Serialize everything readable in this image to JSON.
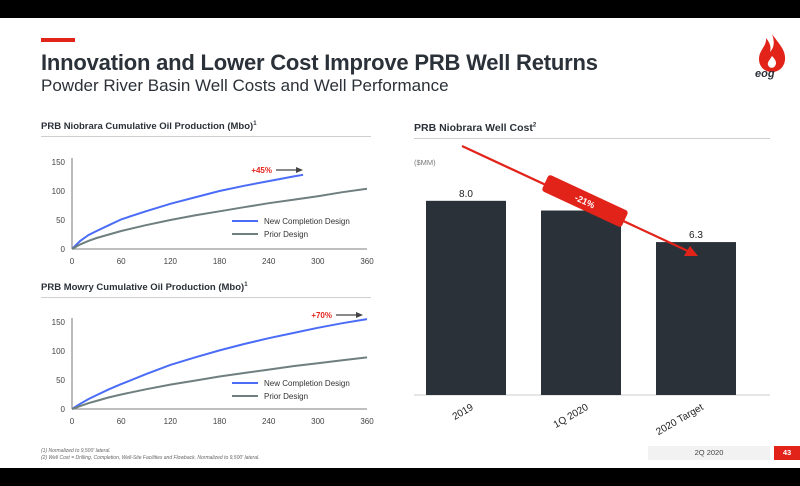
{
  "header": {
    "title": "Innovation and Lower Cost Improve PRB Well Returns",
    "subtitle": "Powder River Basin Well Costs and Well Performance",
    "logo_text": "eog"
  },
  "colors": {
    "accent": "#e2231a",
    "new_design": "#4a6cf7",
    "prior_design": "#6f7f7f",
    "bar": "#2b3138",
    "arrow": "#e2231a"
  },
  "chart_data": [
    {
      "type": "line",
      "title": "PRB Niobrara Cumulative Oil Production (Mbo)",
      "title_sup": "1",
      "xlim": [
        0,
        360
      ],
      "ylim": [
        0,
        150
      ],
      "xticks": [
        "0",
        "60",
        "120",
        "180",
        "240",
        "300",
        "360"
      ],
      "yticks": [
        "0",
        "50",
        "100",
        "150"
      ],
      "series": [
        {
          "name": "New Completion Design",
          "color": "#4a6cf7",
          "x": [
            0,
            10,
            20,
            30,
            45,
            60,
            90,
            120,
            150,
            180,
            210,
            240,
            270,
            282
          ],
          "y": [
            0,
            14,
            24,
            31,
            41,
            51,
            65,
            78,
            89,
            100,
            109,
            117,
            125,
            128
          ]
        },
        {
          "name": "Prior Design",
          "color": "#6f7f7f",
          "x": [
            0,
            10,
            20,
            30,
            45,
            60,
            90,
            120,
            150,
            180,
            210,
            240,
            270,
            300,
            330,
            360
          ],
          "y": [
            0,
            8,
            14,
            19,
            25,
            31,
            41,
            50,
            58,
            65,
            72,
            79,
            85,
            91,
            98,
            104
          ]
        }
      ],
      "annotation": "+45%"
    },
    {
      "type": "line",
      "title": "PRB Mowry Cumulative Oil Production (Mbo)",
      "title_sup": "1",
      "xlim": [
        0,
        360
      ],
      "ylim": [
        0,
        150
      ],
      "xticks": [
        "0",
        "60",
        "120",
        "180",
        "240",
        "300",
        "360"
      ],
      "yticks": [
        "0",
        "50",
        "100",
        "150"
      ],
      "series": [
        {
          "name": "New Completion Design",
          "color": "#4a6cf7",
          "x": [
            0,
            10,
            20,
            30,
            45,
            60,
            90,
            120,
            150,
            180,
            210,
            240,
            270,
            300,
            330,
            360
          ],
          "y": [
            0,
            9,
            17,
            24,
            34,
            43,
            60,
            76,
            89,
            101,
            112,
            122,
            131,
            140,
            148,
            155
          ]
        },
        {
          "name": "Prior Design",
          "color": "#6f7f7f",
          "x": [
            0,
            10,
            20,
            30,
            45,
            60,
            90,
            120,
            150,
            180,
            210,
            240,
            270,
            300,
            330,
            360
          ],
          "y": [
            0,
            5,
            10,
            14,
            20,
            25,
            34,
            42,
            49,
            56,
            62,
            68,
            74,
            79,
            84,
            89
          ]
        }
      ],
      "annotation": "+70%"
    },
    {
      "type": "bar",
      "title": "PRB Niobrara Well Cost",
      "title_sup": "2",
      "unit": "($MM)",
      "categories": [
        "2019",
        "1Q 2020",
        "2020 Target"
      ],
      "values": [
        8.0,
        7.6,
        6.3
      ],
      "value_labels": [
        "8.0",
        "7.6",
        "6.3"
      ],
      "ylim": [
        0,
        11
      ],
      "annotation": "-21%"
    }
  ],
  "footer": {
    "footnotes": [
      "(1)    Normalized to 9,500' lateral.",
      "(2)    Well Cost = Drilling, Completion, Well-Site Facilities and Flowback. Normalized to 9,500' lateral."
    ],
    "date": "2Q 2020",
    "page": "43"
  }
}
